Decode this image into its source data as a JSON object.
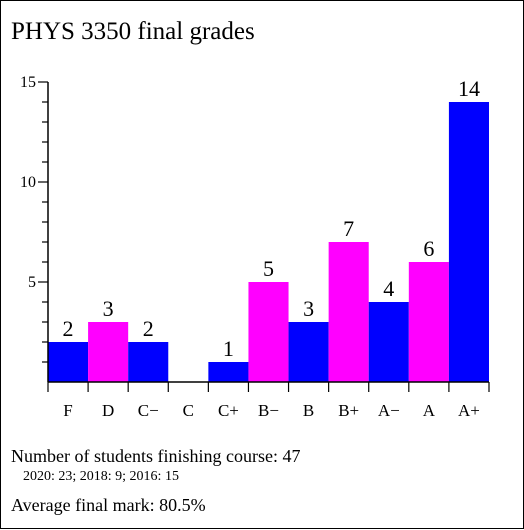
{
  "chart_data": {
    "type": "bar",
    "title": "PHYS 3350 final grades",
    "categories": [
      "F",
      "D",
      "C−",
      "C",
      "C+",
      "B−",
      "B",
      "B+",
      "A−",
      "A",
      "A+"
    ],
    "values": [
      2,
      3,
      2,
      0,
      1,
      5,
      3,
      7,
      4,
      6,
      14
    ],
    "data_labels": [
      "2",
      "3",
      "2",
      "",
      "1",
      "5",
      "3",
      "7",
      "4",
      "6",
      "14"
    ],
    "bar_colors": [
      "#0000ff",
      "#ff00ff",
      "#0000ff",
      "#ff00ff",
      "#0000ff",
      "#ff00ff",
      "#0000ff",
      "#ff00ff",
      "#0000ff",
      "#ff00ff",
      "#0000ff"
    ],
    "ylim": [
      0,
      15
    ],
    "y_major_ticks": [
      5,
      10,
      15
    ],
    "y_major_tick_labels": [
      "5",
      "10",
      "15"
    ],
    "y_minor_tick_step": 1,
    "xlabel": "",
    "ylabel": "",
    "grid": false,
    "legend": false
  },
  "summary": {
    "students_line": "Number of students finishing course: 47",
    "history_line": "2020: 23; 2018: 9; 2016: 15",
    "average_line": "Average final mark: 80.5%"
  }
}
